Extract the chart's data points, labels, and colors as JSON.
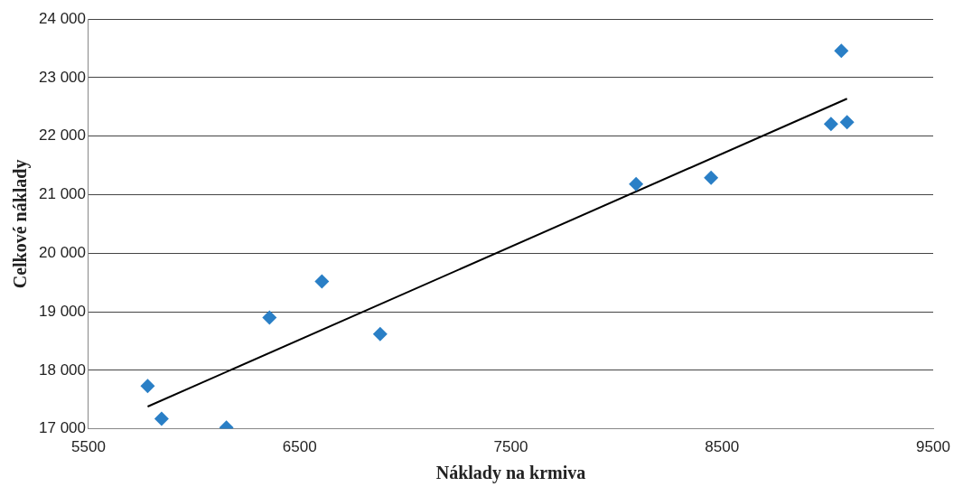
{
  "chart_data": {
    "type": "scatter",
    "xlabel": "Náklady na krmiva",
    "ylabel": "Celkové náklady",
    "series": [
      {
        "type": "scatter",
        "color": "#2a7fc6",
        "x": [
          5780,
          5846,
          6153,
          6357,
          6605,
          6881,
          8093,
          8448,
          9016,
          9065,
          9092
        ],
        "values": [
          17730,
          17170,
          17020,
          18900,
          19520,
          18620,
          21180,
          21290,
          22210,
          23460,
          22240
        ],
        "marker": "diamond"
      },
      {
        "type": "line",
        "color": "#000000",
        "x": [
          5780,
          9092
        ],
        "values": [
          17380,
          22640
        ],
        "marker": "none",
        "line_style": "solid"
      }
    ],
    "xlim": [
      5500,
      9500
    ],
    "xticks": [
      5500,
      6500,
      7500,
      8500,
      9500
    ],
    "ylim": [
      17000,
      24000
    ],
    "yticks": [
      {
        "value": 17000,
        "label": "17 000"
      },
      {
        "value": 18000,
        "label": "18 000"
      },
      {
        "value": 19000,
        "label": "19 000"
      },
      {
        "value": 20000,
        "label": "20 000"
      },
      {
        "value": 21000,
        "label": "21 000"
      },
      {
        "value": 22000,
        "label": "22 000"
      },
      {
        "value": 23000,
        "label": "23 000"
      },
      {
        "value": 24000,
        "label": "24 000"
      }
    ],
    "grid": "y",
    "legend": false
  }
}
